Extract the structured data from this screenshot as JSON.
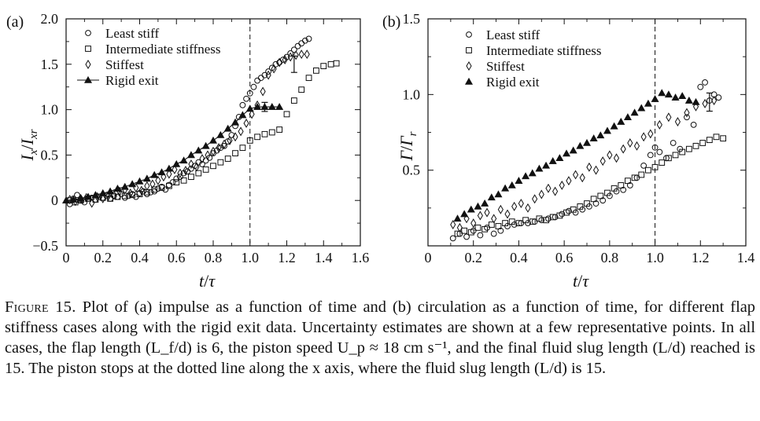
{
  "chart_data": [
    {
      "type": "scatter",
      "panel_label": "(a)",
      "xlabel": "t/τ",
      "ylabel": "I_x/I_xr",
      "xlim": [
        0,
        1.6
      ],
      "ylim": [
        -0.5,
        2.0
      ],
      "xticks": [
        "0",
        "0.2",
        "0.4",
        "0.6",
        "0.8",
        "1.0",
        "1.2",
        "1.4",
        "1.6"
      ],
      "yticks": [
        "−0.5",
        "0",
        "0.5",
        "1.0",
        "1.5",
        "2.0"
      ],
      "vline_x": 1.0,
      "legend_position": "top-left",
      "error_bars": [
        {
          "x": 1.24,
          "y": 1.5,
          "err": 0.09
        },
        {
          "x": 1.08,
          "y": 1.03,
          "err": 0.05
        }
      ],
      "series": [
        {
          "name": "Least stiff",
          "marker": "circle",
          "x": [
            0.02,
            0.04,
            0.06,
            0.08,
            0.1,
            0.12,
            0.14,
            0.16,
            0.18,
            0.2,
            0.22,
            0.24,
            0.26,
            0.28,
            0.3,
            0.32,
            0.34,
            0.36,
            0.38,
            0.4,
            0.42,
            0.44,
            0.46,
            0.48,
            0.5,
            0.52,
            0.54,
            0.56,
            0.58,
            0.6,
            0.62,
            0.64,
            0.66,
            0.68,
            0.7,
            0.72,
            0.74,
            0.76,
            0.78,
            0.8,
            0.82,
            0.84,
            0.86,
            0.88,
            0.9,
            0.92,
            0.94,
            0.96,
            0.98,
            1.0,
            1.02,
            1.04,
            1.06,
            1.08,
            1.1,
            1.12,
            1.14,
            1.16,
            1.18,
            1.2,
            1.22,
            1.24,
            1.26,
            1.28,
            1.3,
            1.32
          ],
          "y": [
            -0.04,
            0.02,
            0.06,
            0.0,
            -0.02,
            0.02,
            0.03,
            0.01,
            0.04,
            0.03,
            0.05,
            0.02,
            0.05,
            0.04,
            0.07,
            0.03,
            0.05,
            0.07,
            0.04,
            0.08,
            0.1,
            0.07,
            0.09,
            0.1,
            0.13,
            0.15,
            0.12,
            0.17,
            0.2,
            0.24,
            0.26,
            0.3,
            0.32,
            0.35,
            0.38,
            0.42,
            0.4,
            0.44,
            0.47,
            0.52,
            0.55,
            0.58,
            0.6,
            0.65,
            0.72,
            0.82,
            0.92,
            1.05,
            1.12,
            1.18,
            1.25,
            1.32,
            1.35,
            1.38,
            1.42,
            1.46,
            1.5,
            1.52,
            1.55,
            1.58,
            1.62,
            1.66,
            1.7,
            1.73,
            1.76,
            1.78
          ]
        },
        {
          "name": "Intermediate stiffness",
          "marker": "square",
          "x": [
            0.02,
            0.05,
            0.08,
            0.12,
            0.16,
            0.2,
            0.24,
            0.28,
            0.32,
            0.36,
            0.4,
            0.44,
            0.48,
            0.52,
            0.56,
            0.6,
            0.64,
            0.68,
            0.72,
            0.76,
            0.8,
            0.84,
            0.88,
            0.92,
            0.96,
            1.0,
            1.04,
            1.08,
            1.12,
            1.16,
            1.2,
            1.24,
            1.28,
            1.32,
            1.36,
            1.4,
            1.44,
            1.47
          ],
          "y": [
            0.0,
            -0.02,
            0.0,
            0.02,
            0.01,
            0.03,
            0.02,
            0.04,
            0.05,
            0.06,
            0.07,
            0.09,
            0.12,
            0.14,
            0.16,
            0.2,
            0.22,
            0.26,
            0.3,
            0.34,
            0.38,
            0.42,
            0.46,
            0.52,
            0.58,
            0.66,
            0.7,
            0.73,
            0.75,
            0.78,
            0.95,
            1.1,
            1.22,
            1.35,
            1.43,
            1.48,
            1.5,
            1.51
          ]
        },
        {
          "name": "Stiffest",
          "marker": "diamond",
          "x": [
            0.02,
            0.05,
            0.08,
            0.11,
            0.14,
            0.17,
            0.2,
            0.23,
            0.26,
            0.29,
            0.32,
            0.35,
            0.38,
            0.41,
            0.44,
            0.47,
            0.5,
            0.53,
            0.56,
            0.59,
            0.62,
            0.65,
            0.68,
            0.71,
            0.74,
            0.77,
            0.8,
            0.83,
            0.86,
            0.89,
            0.92,
            0.95,
            0.98,
            1.01,
            1.04,
            1.07,
            1.1,
            1.13,
            1.16,
            1.19,
            1.22,
            1.25,
            1.28,
            1.31
          ],
          "y": [
            0.01,
            -0.01,
            0.02,
            0.03,
            -0.03,
            0.04,
            0.02,
            0.05,
            0.06,
            0.1,
            0.12,
            0.08,
            0.14,
            0.11,
            0.16,
            0.18,
            0.22,
            0.26,
            0.29,
            0.34,
            0.3,
            0.33,
            0.4,
            0.37,
            0.46,
            0.5,
            0.54,
            0.58,
            0.62,
            0.66,
            0.7,
            0.76,
            0.85,
            0.95,
            1.05,
            1.2,
            1.38,
            1.45,
            1.52,
            1.55,
            1.58,
            1.6,
            1.61,
            1.61
          ]
        },
        {
          "name": "Rigid exit",
          "marker": "triangle",
          "line": true,
          "x": [
            0.0,
            0.04,
            0.08,
            0.12,
            0.16,
            0.2,
            0.24,
            0.28,
            0.32,
            0.36,
            0.4,
            0.44,
            0.48,
            0.52,
            0.56,
            0.6,
            0.64,
            0.68,
            0.72,
            0.76,
            0.8,
            0.84,
            0.88,
            0.92,
            0.96,
            1.0,
            1.04,
            1.08,
            1.12,
            1.16
          ],
          "y": [
            0.0,
            0.01,
            0.02,
            0.04,
            0.06,
            0.08,
            0.1,
            0.13,
            0.15,
            0.18,
            0.21,
            0.24,
            0.28,
            0.31,
            0.35,
            0.4,
            0.44,
            0.5,
            0.55,
            0.6,
            0.66,
            0.72,
            0.79,
            0.86,
            0.94,
            1.01,
            1.03,
            1.03,
            1.03,
            1.03
          ]
        }
      ]
    },
    {
      "type": "scatter",
      "panel_label": "(b)",
      "xlabel": "t/τ",
      "ylabel": "Γ/Γ_r",
      "xlim": [
        0,
        1.4
      ],
      "ylim": [
        0,
        1.5
      ],
      "xticks": [
        "0",
        "0.2",
        "0.4",
        "0.6",
        "0.8",
        "1.0",
        "1.2",
        "1.4"
      ],
      "yticks": [
        "0.5",
        "1.0",
        "1.5"
      ],
      "vline_x": 1.0,
      "legend_position": "top-left",
      "error_bars": [
        {
          "x": 1.24,
          "y": 0.95,
          "err": 0.06
        }
      ],
      "series": [
        {
          "name": "Least stiff",
          "marker": "circle",
          "x": [
            0.11,
            0.14,
            0.17,
            0.2,
            0.23,
            0.26,
            0.29,
            0.32,
            0.35,
            0.38,
            0.41,
            0.44,
            0.47,
            0.5,
            0.53,
            0.56,
            0.59,
            0.62,
            0.65,
            0.68,
            0.71,
            0.74,
            0.77,
            0.8,
            0.83,
            0.86,
            0.89,
            0.92,
            0.95,
            0.98,
            1.0,
            1.02,
            1.05,
            1.08,
            1.11,
            1.14,
            1.17,
            1.2,
            1.22,
            1.24,
            1.26,
            1.28
          ],
          "y": [
            0.05,
            0.08,
            0.06,
            0.1,
            0.07,
            0.12,
            0.08,
            0.1,
            0.13,
            0.14,
            0.15,
            0.15,
            0.16,
            0.17,
            0.18,
            0.19,
            0.21,
            0.23,
            0.22,
            0.24,
            0.26,
            0.28,
            0.3,
            0.33,
            0.36,
            0.37,
            0.4,
            0.45,
            0.53,
            0.6,
            0.65,
            0.62,
            0.58,
            0.68,
            0.64,
            0.85,
            0.8,
            1.05,
            1.08,
            0.96,
            1.0,
            0.98
          ]
        },
        {
          "name": "Intermediate stiffness",
          "marker": "square",
          "x": [
            0.13,
            0.16,
            0.19,
            0.22,
            0.25,
            0.28,
            0.31,
            0.34,
            0.37,
            0.4,
            0.43,
            0.46,
            0.49,
            0.52,
            0.55,
            0.58,
            0.61,
            0.64,
            0.67,
            0.7,
            0.73,
            0.76,
            0.79,
            0.82,
            0.85,
            0.88,
            0.91,
            0.94,
            0.97,
            1.0,
            1.03,
            1.06,
            1.09,
            1.12,
            1.15,
            1.18,
            1.21,
            1.24,
            1.27,
            1.3
          ],
          "y": [
            0.08,
            0.1,
            0.09,
            0.12,
            0.11,
            0.14,
            0.13,
            0.15,
            0.16,
            0.15,
            0.17,
            0.16,
            0.18,
            0.17,
            0.19,
            0.2,
            0.22,
            0.24,
            0.26,
            0.28,
            0.31,
            0.33,
            0.35,
            0.38,
            0.4,
            0.43,
            0.45,
            0.47,
            0.5,
            0.52,
            0.55,
            0.58,
            0.6,
            0.62,
            0.64,
            0.66,
            0.68,
            0.7,
            0.72,
            0.71
          ]
        },
        {
          "name": "Stiffest",
          "marker": "diamond",
          "x": [
            0.11,
            0.14,
            0.17,
            0.2,
            0.23,
            0.26,
            0.29,
            0.32,
            0.35,
            0.38,
            0.41,
            0.44,
            0.47,
            0.5,
            0.53,
            0.56,
            0.59,
            0.62,
            0.65,
            0.68,
            0.71,
            0.74,
            0.77,
            0.8,
            0.83,
            0.86,
            0.89,
            0.92,
            0.95,
            0.98,
            1.02,
            1.06,
            1.1,
            1.14,
            1.18,
            1.22,
            1.26
          ],
          "y": [
            0.14,
            0.12,
            0.18,
            0.15,
            0.2,
            0.22,
            0.18,
            0.24,
            0.21,
            0.26,
            0.28,
            0.25,
            0.31,
            0.34,
            0.38,
            0.36,
            0.4,
            0.43,
            0.47,
            0.45,
            0.52,
            0.5,
            0.56,
            0.6,
            0.58,
            0.64,
            0.68,
            0.66,
            0.72,
            0.74,
            0.8,
            0.85,
            0.82,
            0.88,
            0.92,
            0.94,
            0.96
          ]
        },
        {
          "name": "Rigid exit",
          "marker": "triangle",
          "x": [
            0.13,
            0.16,
            0.19,
            0.22,
            0.25,
            0.28,
            0.31,
            0.34,
            0.37,
            0.4,
            0.43,
            0.46,
            0.49,
            0.52,
            0.55,
            0.58,
            0.61,
            0.64,
            0.67,
            0.7,
            0.73,
            0.76,
            0.79,
            0.82,
            0.85,
            0.88,
            0.91,
            0.94,
            0.97,
            1.0,
            1.03,
            1.06,
            1.09,
            1.12,
            1.15,
            1.18
          ],
          "y": [
            0.18,
            0.21,
            0.24,
            0.26,
            0.28,
            0.32,
            0.34,
            0.38,
            0.4,
            0.43,
            0.46,
            0.48,
            0.51,
            0.53,
            0.56,
            0.58,
            0.61,
            0.63,
            0.66,
            0.68,
            0.71,
            0.73,
            0.76,
            0.79,
            0.82,
            0.85,
            0.88,
            0.91,
            0.94,
            0.97,
            1.01,
            1.0,
            0.98,
            0.99,
            0.96,
            0.95
          ]
        }
      ]
    }
  ],
  "caption": {
    "label": "Figure 15.",
    "text": "Plot of (a) impulse as a function of time and (b) circulation as a function of time, for different flap stiffness cases along with the rigid exit data. Uncertainty estimates are shown at a few representative points. In all cases, the flap length (L_f/d) is 6, the piston speed U_p ≈ 18 cm s⁻¹, and the final fluid slug length (L/d) reached is 15. The piston stops at the dotted line along the x axis, where the fluid slug length (L/d) is 15."
  }
}
